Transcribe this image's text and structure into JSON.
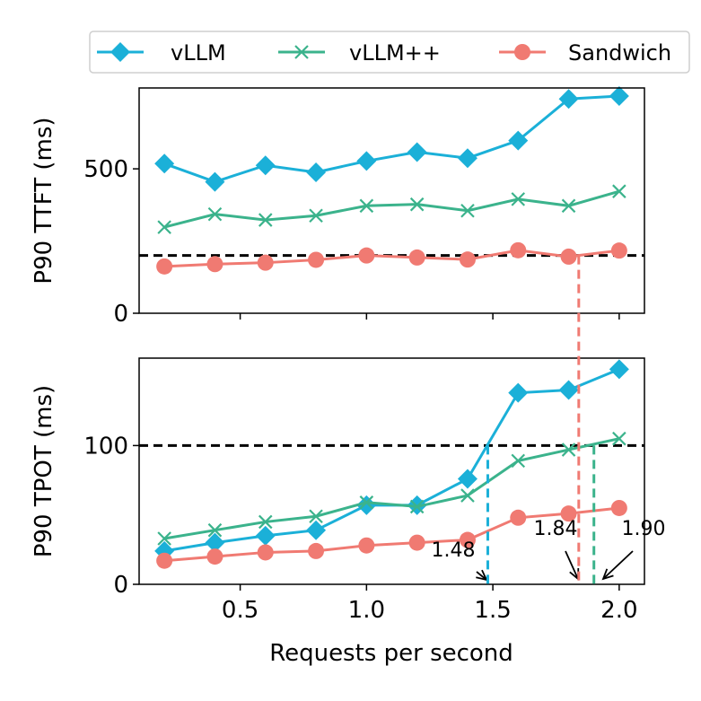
{
  "colors": {
    "vllm": "#1bb0d8",
    "vllmpp": "#3bb38c",
    "sandwich": "#f07a72",
    "slo": "#000000"
  },
  "legend": {
    "vllm": "vLLM",
    "vllmpp": "vLLM++",
    "sandwich": "Sandwich",
    "placement": "top"
  },
  "chart_data": [
    {
      "type": "line",
      "panel": "top",
      "xlabel": "",
      "ylabel": "P90 TTFT (ms)",
      "xlim": [
        0.1,
        2.1
      ],
      "ylim": [
        0,
        780
      ],
      "yticks": [
        0,
        500
      ],
      "ytick_labels": [
        "0",
        "500"
      ],
      "x": [
        0.2,
        0.4,
        0.6,
        0.8,
        1.0,
        1.2,
        1.4,
        1.6,
        1.8,
        2.0
      ],
      "slo": 200,
      "series": [
        {
          "name": "vLLM",
          "key": "vllm",
          "marker": "diamond",
          "values": [
            518,
            455,
            512,
            488,
            527,
            558,
            537,
            598,
            742,
            752
          ]
        },
        {
          "name": "vLLM++",
          "key": "vllmpp",
          "marker": "x",
          "values": [
            298,
            343,
            323,
            338,
            372,
            377,
            355,
            395,
            372,
            422
          ]
        },
        {
          "name": "Sandwich",
          "key": "sandwich",
          "marker": "circle",
          "values": [
            162,
            170,
            175,
            185,
            200,
            193,
            186,
            218,
            196,
            217
          ]
        }
      ]
    },
    {
      "type": "line",
      "panel": "bottom",
      "xlabel": "Requests per second",
      "ylabel": "P90 TPOT (ms)",
      "xlim": [
        0.1,
        2.1
      ],
      "ylim": [
        0,
        163
      ],
      "yticks": [
        0,
        100
      ],
      "ytick_labels": [
        "0",
        "100"
      ],
      "xticks": [
        0.5,
        1.0,
        1.5,
        2.0
      ],
      "xtick_labels": [
        "0.5",
        "1.0",
        "1.5",
        "2.0"
      ],
      "x": [
        0.2,
        0.4,
        0.6,
        0.8,
        1.0,
        1.2,
        1.4,
        1.6,
        1.8,
        2.0
      ],
      "slo": 100,
      "series": [
        {
          "name": "vLLM",
          "key": "vllm",
          "marker": "diamond",
          "values": [
            24,
            30,
            35,
            39,
            57,
            57,
            76,
            138,
            140,
            155
          ]
        },
        {
          "name": "vLLM++",
          "key": "vllmpp",
          "marker": "x",
          "values": [
            33,
            39,
            45,
            49,
            59,
            56,
            64,
            89,
            97,
            105
          ]
        },
        {
          "name": "Sandwich",
          "key": "sandwich",
          "marker": "circle",
          "values": [
            17,
            20,
            23,
            24,
            28,
            30,
            32,
            48,
            51,
            55
          ]
        }
      ],
      "annotations": [
        {
          "text": "1.48",
          "x": 1.48,
          "key": "vllm"
        },
        {
          "text": "1.84",
          "x": 1.84,
          "key": "sandwich"
        },
        {
          "text": "1.90",
          "x": 1.9,
          "key": "vllmpp"
        }
      ]
    }
  ]
}
